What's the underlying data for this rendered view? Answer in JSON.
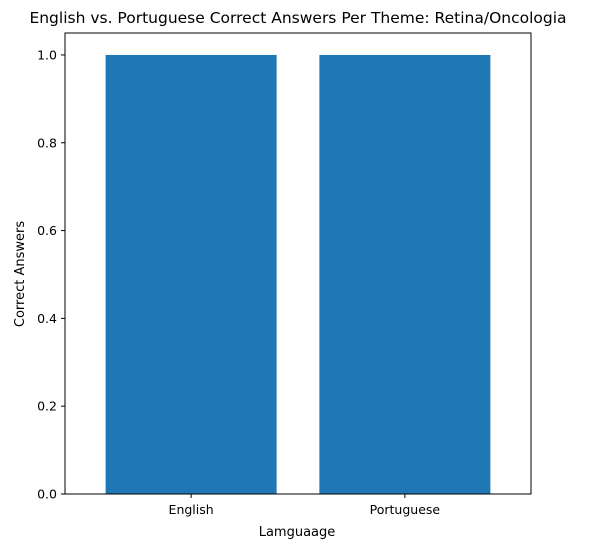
{
  "chart_data": {
    "type": "bar",
    "title": "English vs. Portuguese Correct Answers Per Theme: Retina/Oncologia",
    "xlabel": "Lamguaage",
    "ylabel": "Correct Answers",
    "categories": [
      "English",
      "Portuguese"
    ],
    "values": [
      1.0,
      1.0
    ],
    "ylim": [
      0,
      1.05
    ],
    "yticks": [
      "0.0",
      "0.2",
      "0.4",
      "0.6",
      "0.8",
      "1.0"
    ],
    "grid": false,
    "bar_color": "#1f77b4"
  }
}
